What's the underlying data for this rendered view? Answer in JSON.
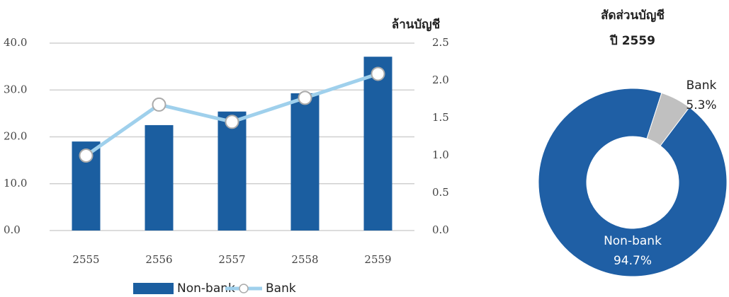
{
  "chart_data": [
    {
      "type": "combo",
      "y2_axis_label": "ล้านบัญชี",
      "categories": [
        "2555",
        "2556",
        "2557",
        "2558",
        "2559"
      ],
      "series": [
        {
          "name": "Non-bank",
          "type": "bar",
          "color": "#1b5ea0",
          "values": [
            19.0,
            22.5,
            25.4,
            29.3,
            37.1
          ]
        },
        {
          "name": "Bank",
          "type": "line",
          "axis": "y2",
          "color": "#9fd0ec",
          "values": [
            1.0,
            1.68,
            1.45,
            1.77,
            2.09
          ]
        }
      ],
      "ylim": [
        0,
        40
      ],
      "yticks": [
        {
          "value": 0,
          "label": "0.0"
        },
        {
          "value": 10,
          "label": "10.0"
        },
        {
          "value": 20,
          "label": "20.0"
        },
        {
          "value": 30,
          "label": "30.0"
        },
        {
          "value": 40,
          "label": "40.0"
        }
      ],
      "y2lim": [
        0,
        2.5
      ],
      "y2ticks": [
        {
          "value": 0,
          "label": "0.0"
        },
        0.5,
        {
          "value": 1,
          "label": "1.0"
        },
        1.5,
        {
          "value": 2,
          "label": "2.0"
        },
        2.5
      ],
      "grid": true,
      "legend": "bottom"
    },
    {
      "type": "donut",
      "title": [
        "สัดส่วนบัญชี",
        "ปี 2559"
      ],
      "categories": [
        "Non-bank",
        "Bank"
      ],
      "values": [
        94.7,
        5.3
      ],
      "value_labels": [
        "94.7%",
        "5.3%"
      ],
      "colors": [
        "#1f5fa5",
        "#c0c0c0"
      ]
    }
  ]
}
